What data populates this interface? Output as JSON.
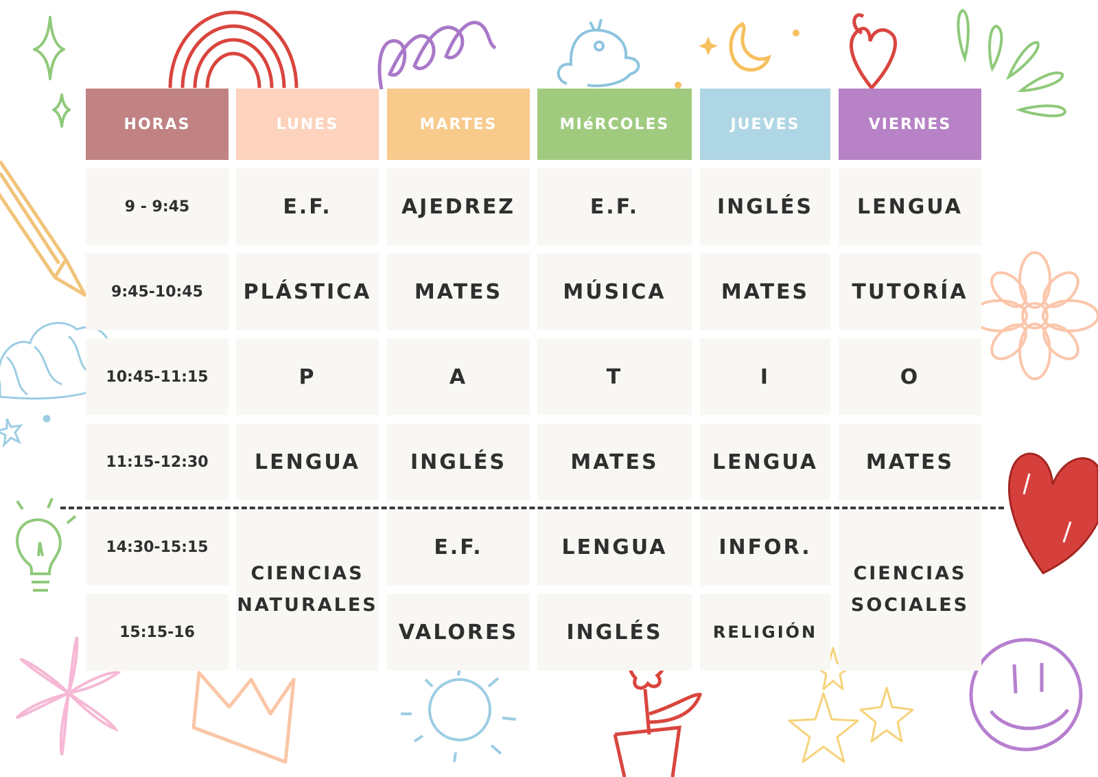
{
  "headers": {
    "horas": "HORAS",
    "lunes": "LUNES",
    "martes": "MARTES",
    "miercoles": "MIéRCOLES",
    "jueves": "JUEVES",
    "viernes": "VIERNES"
  },
  "header_colors": {
    "horas": "#c08283",
    "lunes": "#fdd3bd",
    "martes": "#f8ca8c",
    "miercoles": "#a0cb7f",
    "jueves": "#afd6e4",
    "viernes": "#b783c6"
  },
  "hours": [
    "9 - 9:45",
    "9:45-10:45",
    "10:45-11:15",
    "11:15-12:30",
    "14:30-15:15",
    "15:15-16"
  ],
  "rows": [
    [
      "E.F.",
      "AJEDREZ",
      "E.F.",
      "INGLÉS",
      "LENGUA"
    ],
    [
      "PLÁSTICA",
      "MATES",
      "MÚSICA",
      "MATES",
      "TUTORÍA"
    ],
    [
      "P",
      "A",
      "T",
      "I",
      "O"
    ],
    [
      "LENGUA",
      "INGLÉS",
      "MATES",
      "LENGUA",
      "MATES"
    ]
  ],
  "afternoon": {
    "lunes": {
      "line1": "CIENCIAS",
      "line2": "NATURALES"
    },
    "martes": [
      "E.F.",
      "VALORES"
    ],
    "miercoles": [
      "LENGUA",
      "INGLÉS"
    ],
    "jueves": [
      "INFOR.",
      "RELIGIÓN"
    ],
    "viernes": {
      "line1": "CIENCIAS",
      "line2": "SOCIALES"
    }
  },
  "icons": [
    "sparkle-icon",
    "rainbow-icon",
    "spiral-icon",
    "bird-icon",
    "moon-icon",
    "heart-icon",
    "sunburst-icon",
    "pencil-icon",
    "flower-icon",
    "cloud-icon",
    "lightbulb-icon",
    "big-heart-icon",
    "star-flower-icon",
    "crown-icon",
    "sun-icon",
    "potted-flower-icon",
    "stars-icon",
    "smiley-icon"
  ]
}
